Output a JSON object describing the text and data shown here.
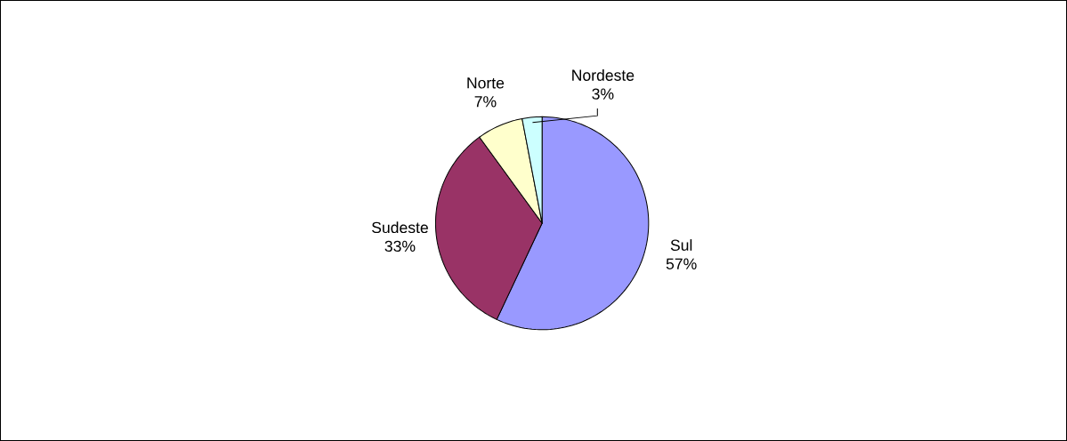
{
  "chart_data": {
    "type": "pie",
    "categories": [
      "Sul",
      "Sudeste",
      "Norte",
      "Nordeste"
    ],
    "values": [
      57,
      33,
      7,
      3
    ],
    "colors": [
      "#9999ff",
      "#993366",
      "#ffffcc",
      "#ccffff"
    ],
    "value_labels": [
      "57%",
      "33%",
      "7%",
      "3%"
    ]
  }
}
